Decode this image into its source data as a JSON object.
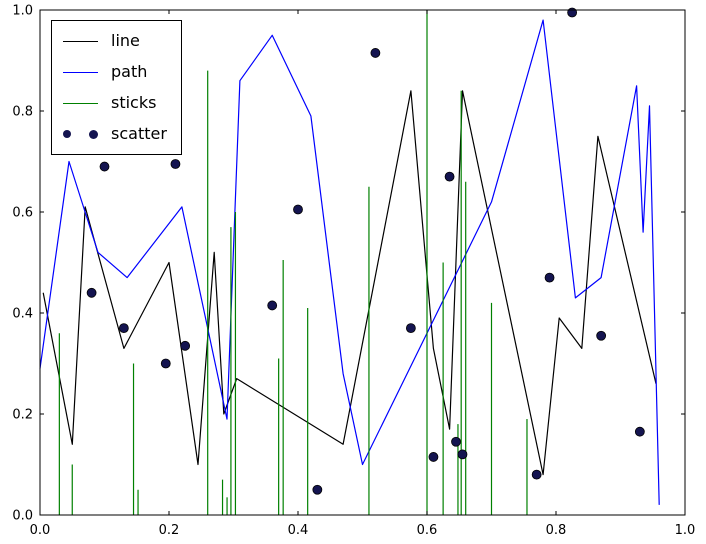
{
  "figure": {
    "background": "#ffffff"
  },
  "chart_data": {
    "type": "mixed",
    "title": "",
    "xlabel": "",
    "ylabel": "",
    "xlim": [
      0.0,
      1.0
    ],
    "ylim": [
      0.0,
      1.0
    ],
    "grid": false,
    "xticks": [
      "0.0",
      "0.2",
      "0.4",
      "0.6",
      "0.8",
      "1.0"
    ],
    "yticks": [
      "0.0",
      "0.2",
      "0.4",
      "0.6",
      "0.8",
      "1.0"
    ],
    "legend": {
      "position": "upper left",
      "labels": [
        "line",
        "path",
        "sticks",
        "scatter"
      ]
    },
    "series": [
      {
        "name": "line",
        "type": "line",
        "color": "#000000",
        "x": [
          0.005,
          0.05,
          0.07,
          0.13,
          0.2,
          0.245,
          0.27,
          0.285,
          0.305,
          0.47,
          0.575,
          0.61,
          0.635,
          0.655,
          0.78,
          0.805,
          0.84,
          0.865,
          0.955
        ],
        "y": [
          0.44,
          0.14,
          0.61,
          0.33,
          0.5,
          0.1,
          0.52,
          0.2,
          0.27,
          0.14,
          0.84,
          0.33,
          0.17,
          0.84,
          0.08,
          0.39,
          0.33,
          0.75,
          0.26
        ]
      },
      {
        "name": "path",
        "type": "line",
        "color": "#0000ff",
        "x": [
          0.0,
          0.045,
          0.09,
          0.135,
          0.22,
          0.29,
          0.31,
          0.36,
          0.42,
          0.47,
          0.5,
          0.7,
          0.78,
          0.83,
          0.87,
          0.925,
          0.935,
          0.945,
          0.96
        ],
        "y": [
          0.29,
          0.7,
          0.52,
          0.47,
          0.61,
          0.19,
          0.86,
          0.95,
          0.79,
          0.28,
          0.1,
          0.62,
          0.98,
          0.43,
          0.47,
          0.85,
          0.56,
          0.81,
          0.02
        ]
      },
      {
        "name": "sticks",
        "type": "sticks",
        "color": "#008000",
        "x": [
          0.03,
          0.05,
          0.145,
          0.152,
          0.26,
          0.283,
          0.29,
          0.296,
          0.303,
          0.37,
          0.377,
          0.415,
          0.51,
          0.6,
          0.625,
          0.648,
          0.653,
          0.66,
          0.7,
          0.755
        ],
        "y": [
          0.36,
          0.1,
          0.3,
          0.05,
          0.88,
          0.07,
          0.035,
          0.57,
          0.6,
          0.31,
          0.505,
          0.41,
          0.65,
          1.0,
          0.5,
          0.18,
          0.84,
          0.66,
          0.42,
          0.19
        ]
      },
      {
        "name": "scatter",
        "type": "scatter",
        "color": "#141450",
        "edge": "#000000",
        "x": [
          0.08,
          0.1,
          0.13,
          0.195,
          0.21,
          0.225,
          0.36,
          0.4,
          0.43,
          0.52,
          0.575,
          0.61,
          0.635,
          0.645,
          0.655,
          0.77,
          0.79,
          0.825,
          0.87,
          0.93
        ],
        "y": [
          0.44,
          0.69,
          0.37,
          0.3,
          0.695,
          0.335,
          0.415,
          0.605,
          0.05,
          0.915,
          0.37,
          0.115,
          0.67,
          0.145,
          0.12,
          0.08,
          0.47,
          0.995,
          0.355,
          0.165
        ]
      }
    ]
  }
}
